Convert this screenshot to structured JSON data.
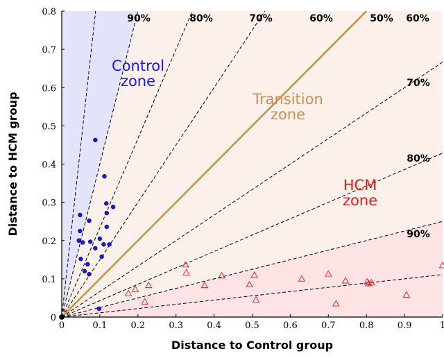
{
  "chart_data": {
    "type": "scatter",
    "xlabel": "Distance to Control group",
    "ylabel": "Distance to HCM group",
    "xlim": [
      0,
      1.0
    ],
    "ylim": [
      0,
      0.8
    ],
    "xticks": [
      "0",
      "0.1",
      "0.2",
      "0.3",
      "0.4",
      "0.5",
      "0.6",
      "0.7",
      "0.8",
      "0.9",
      "1"
    ],
    "yticks": [
      "0",
      "0.1",
      "0.2",
      "0.3",
      "0.4",
      "0.5",
      "0.6",
      "0.7",
      "0.8"
    ],
    "grid": false,
    "zones": [
      {
        "label": [
          "Control",
          "zone"
        ],
        "color": "#1a1ae6",
        "fill": "#e3e4fa",
        "region": "y above the 80% line"
      },
      {
        "label": [
          "Transition",
          "zone"
        ],
        "color": "#c8914a",
        "fill": "#fcf1ea",
        "region": "between the 80% lines"
      },
      {
        "label": [
          "HCM",
          "zone"
        ],
        "color": "#e61a1a",
        "fill": "#fde3e3",
        "region": "y below the 80% line"
      }
    ],
    "boundary_color": "#c8914a",
    "reference_lines": [
      {
        "label": "90%",
        "slope": 9
      },
      {
        "label": "80%",
        "slope": 4
      },
      {
        "label": "70%",
        "slope": 2.3333
      },
      {
        "label": "60%",
        "slope": 1.5
      },
      {
        "label": "50%",
        "slope": 1.0
      },
      {
        "label": "60%",
        "slope": 0.6667
      },
      {
        "label": "70%",
        "slope": 0.4286
      },
      {
        "label": "80%",
        "slope": 0.25
      },
      {
        "label": "90%",
        "slope": 0.1111
      }
    ],
    "series": [
      {
        "marker": "circle",
        "color": "#1a1ae6",
        "points": [
          [
            0.088,
            0.463
          ],
          [
            0.112,
            0.368
          ],
          [
            0.117,
            0.297
          ],
          [
            0.135,
            0.288
          ],
          [
            0.118,
            0.272
          ],
          [
            0.048,
            0.267
          ],
          [
            0.072,
            0.252
          ],
          [
            0.118,
            0.236
          ],
          [
            0.048,
            0.225
          ],
          [
            0.1,
            0.205
          ],
          [
            0.045,
            0.2
          ],
          [
            0.075,
            0.197
          ],
          [
            0.055,
            0.195
          ],
          [
            0.11,
            0.19
          ],
          [
            0.125,
            0.19
          ],
          [
            0.088,
            0.18
          ],
          [
            0.105,
            0.158
          ],
          [
            0.05,
            0.152
          ],
          [
            0.068,
            0.138
          ],
          [
            0.06,
            0.12
          ],
          [
            0.072,
            0.112
          ],
          [
            0.098,
            0.022
          ],
          [
            0.0,
            0.0
          ]
        ]
      },
      {
        "marker": "triangle",
        "color": "#e61a1a",
        "points": [
          [
            0.325,
            0.137
          ],
          [
            1.0,
            0.135
          ],
          [
            0.327,
            0.116
          ],
          [
            0.506,
            0.11
          ],
          [
            0.7,
            0.113
          ],
          [
            0.42,
            0.108
          ],
          [
            0.63,
            0.1
          ],
          [
            0.745,
            0.095
          ],
          [
            0.802,
            0.092
          ],
          [
            0.813,
            0.09
          ],
          [
            0.806,
            0.088
          ],
          [
            0.493,
            0.085
          ],
          [
            0.228,
            0.083
          ],
          [
            0.375,
            0.083
          ],
          [
            0.193,
            0.073
          ],
          [
            0.175,
            0.062
          ],
          [
            0.905,
            0.058
          ],
          [
            0.51,
            0.045
          ],
          [
            0.218,
            0.04
          ],
          [
            0.72,
            0.035
          ]
        ]
      }
    ]
  }
}
